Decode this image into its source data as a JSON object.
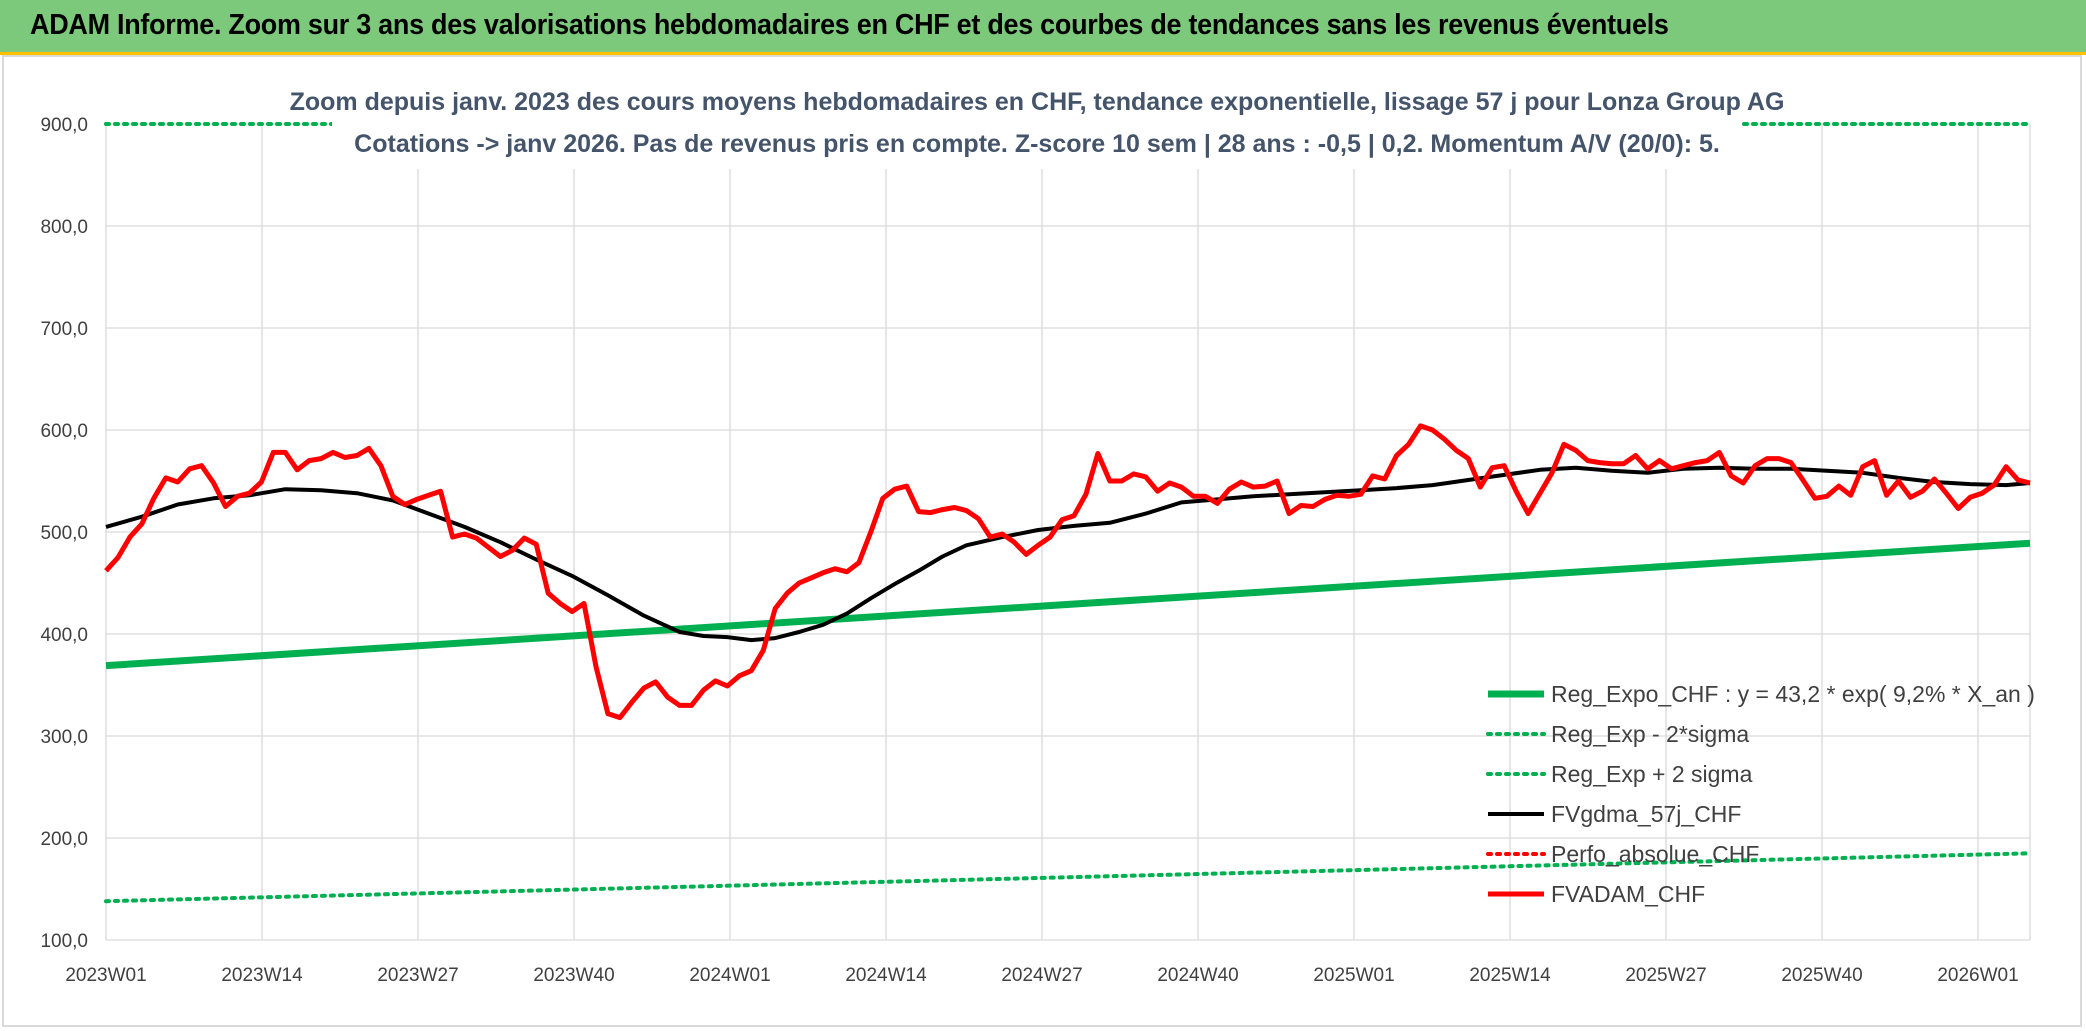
{
  "header": {
    "title": "ADAM Informe. Zoom sur 3 ans des valorisations hebdomadaires en CHF et des courbes de tendances sans les revenus éventuels"
  },
  "colors": {
    "header_bg": "#7dc97b",
    "header_accent": "#ffc000",
    "reg_expo": "#00b050",
    "fvgdma": "#000000",
    "perfo": "#ff0000",
    "fvadam": "#ff0000",
    "grid": "#d9d9d9"
  },
  "chart_data": {
    "type": "line",
    "title": "Zoom depuis janv. 2023 des cours moyens hebdomadaires en CHF, tendance exponentielle, lissage 57 j pour Lonza Group AG",
    "subtitle": "Cotations -> janv 2026. Pas de revenus pris en compte. Z-score 10 sem | 28 ans : -0,5 | 0,2. Momentum A/V (20/0): 5.",
    "xlabel": "",
    "ylabel": "",
    "ylim": [
      100,
      900
    ],
    "yticks": [
      "100,0",
      "200,0",
      "300,0",
      "400,0",
      "500,0",
      "600,0",
      "700,0",
      "800,0",
      "900,0"
    ],
    "x_tick_labels": [
      "2023W01",
      "2023W14",
      "2023W27",
      "2023W40",
      "2024W01",
      "2024W14",
      "2024W27",
      "2024W40",
      "2025W01",
      "2025W14",
      "2025W27",
      "2025W40",
      "2026W01"
    ],
    "x_range_weeks": [
      0,
      161
    ],
    "grid": true,
    "legend_position": "bottom-right",
    "series": [
      {
        "name": "Reg_Expo_CHF : y = 43,2 * exp( 9,2% *  X_an )",
        "style": "solid-thick",
        "color": "#00b050",
        "x": [
          0,
          161
        ],
        "y": [
          369,
          489
        ]
      },
      {
        "name": "Reg_Exp - 2*sigma",
        "style": "dotted",
        "color": "#00b050",
        "x": [
          0,
          161
        ],
        "y": [
          138,
          185
        ]
      },
      {
        "name": "Reg_Exp + 2 sigma",
        "style": "dotted",
        "color": "#00b050",
        "x": [
          0,
          161
        ],
        "y": [
          900,
          900
        ]
      },
      {
        "name": "FVgdma_57j_CHF",
        "style": "solid",
        "color": "#000000",
        "x": [
          0,
          3,
          6,
          9,
          12,
          15,
          18,
          21,
          24,
          27,
          30,
          33,
          36,
          39,
          42,
          45,
          48,
          50,
          52,
          54,
          56,
          58,
          60,
          62,
          64,
          66,
          68,
          70,
          72,
          75,
          78,
          81,
          84,
          87,
          90,
          93,
          96,
          99,
          102,
          105,
          108,
          111,
          114,
          117,
          120,
          123,
          126,
          129,
          132,
          135,
          138,
          141,
          144,
          147,
          150,
          153,
          156,
          159,
          161
        ],
        "y": [
          505,
          515,
          527,
          533,
          536,
          542,
          541,
          538,
          531,
          518,
          505,
          490,
          473,
          457,
          438,
          418,
          402,
          398,
          397,
          394,
          396,
          402,
          409,
          420,
          435,
          449,
          462,
          476,
          487,
          495,
          502,
          506,
          509,
          518,
          529,
          532,
          535,
          537,
          539,
          541,
          543,
          546,
          551,
          556,
          561,
          563,
          560,
          558,
          562,
          563,
          562,
          562,
          560,
          558,
          553,
          549,
          547,
          546,
          548
        ]
      },
      {
        "name": "Perfo_absolue_CHF",
        "style": "dotted",
        "color": "#ff0000",
        "x": [],
        "y": []
      },
      {
        "name": "FVADAM_CHF",
        "style": "solid-thick",
        "color": "#ff0000",
        "x": [
          0,
          1,
          2,
          3,
          4,
          5,
          6,
          7,
          8,
          9,
          10,
          11,
          12,
          13,
          14,
          15,
          16,
          17,
          18,
          19,
          20,
          21,
          22,
          23,
          24,
          25,
          26,
          27,
          28,
          29,
          30,
          31,
          32,
          33,
          34,
          35,
          36,
          37,
          38,
          39,
          40,
          41,
          42,
          43,
          44,
          45,
          46,
          47,
          48,
          49,
          50,
          51,
          52,
          53,
          54,
          55,
          56,
          57,
          58,
          59,
          60,
          61,
          62,
          63,
          64,
          65,
          66,
          67,
          68,
          69,
          70,
          71,
          72,
          73,
          74,
          75,
          76,
          77,
          78,
          79,
          80,
          81,
          82,
          83,
          84,
          85,
          86,
          87,
          88,
          89,
          90,
          91,
          92,
          93,
          94,
          95,
          96,
          97,
          98,
          99,
          100,
          101,
          102,
          103,
          104,
          105,
          106,
          107,
          108,
          109,
          110,
          111,
          112,
          113,
          114,
          115,
          116,
          117,
          118,
          119,
          120,
          121,
          122,
          123,
          124,
          125,
          126,
          127,
          128,
          129,
          130,
          131,
          132,
          133,
          134,
          135,
          136,
          137,
          138,
          139,
          140,
          141,
          142,
          143,
          144,
          145,
          146,
          147,
          148,
          149,
          150,
          151,
          152,
          153,
          154,
          155,
          156,
          157,
          158,
          159,
          160,
          161
        ],
        "y": [
          462,
          475,
          495,
          508,
          533,
          553,
          549,
          562,
          565,
          548,
          525,
          535,
          538,
          549,
          578,
          578,
          561,
          570,
          572,
          578,
          573,
          575,
          582,
          565,
          535,
          527,
          532,
          536,
          540,
          495,
          498,
          494,
          485,
          476,
          482,
          494,
          488,
          440,
          430,
          422,
          430,
          368,
          322,
          318,
          333,
          347,
          353,
          338,
          330,
          330,
          345,
          354,
          349,
          359,
          364,
          384,
          425,
          440,
          450,
          455,
          460,
          464,
          461,
          470,
          500,
          533,
          542,
          545,
          520,
          519,
          522,
          524,
          521,
          513,
          495,
          498,
          490,
          478,
          487,
          495,
          512,
          516,
          537,
          577,
          550,
          550,
          557,
          554,
          540,
          548,
          544,
          535,
          535,
          528,
          542,
          549,
          544,
          545,
          550,
          518,
          526,
          525,
          532,
          536,
          535,
          537,
          555,
          552,
          575,
          586,
          604,
          600,
          591,
          580,
          572,
          544,
          563,
          565,
          540,
          518,
          538,
          558,
          586,
          580,
          570,
          568,
          567,
          567,
          575,
          562,
          570,
          562,
          565,
          568,
          570,
          578,
          555,
          548,
          565,
          572,
          572,
          568,
          551,
          533,
          535,
          545,
          536,
          564,
          570,
          536,
          550,
          534,
          540,
          552,
          538,
          523,
          534,
          538,
          546,
          564,
          551,
          548
        ]
      }
    ]
  }
}
